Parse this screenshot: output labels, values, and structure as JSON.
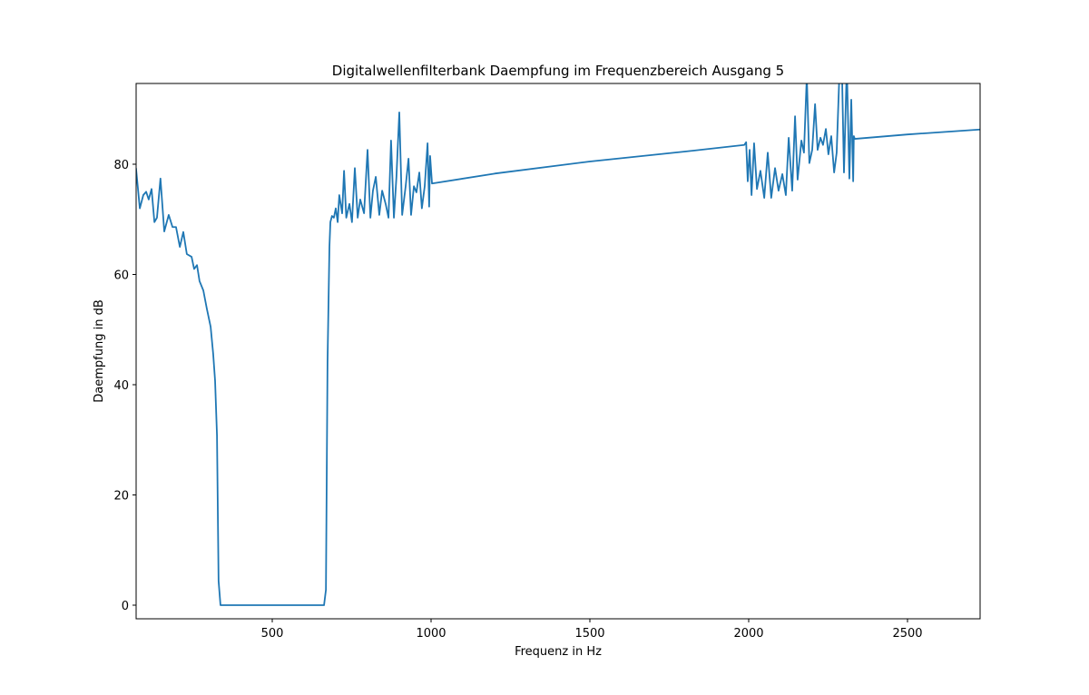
{
  "chart_data": {
    "type": "line",
    "title": "Digitalwellenfilterbank Daempfung im Frequenzbereich Ausgang 5",
    "xlabel": "Frequenz in Hz",
    "ylabel": "Daempfung in dB",
    "color": "#1f77b4",
    "x": [
      71,
      83,
      94,
      103,
      111,
      120,
      129,
      137,
      148,
      160,
      174,
      186,
      197,
      209,
      220,
      231,
      246,
      254,
      263,
      271,
      283,
      294,
      306,
      314,
      320,
      326,
      331,
      337,
      400,
      500,
      600,
      663,
      669,
      674,
      680,
      683,
      688,
      694,
      700,
      706,
      711,
      720,
      726,
      733,
      743,
      751,
      760,
      769,
      777,
      789,
      800,
      809,
      817,
      826,
      837,
      846,
      857,
      866,
      874,
      883,
      891,
      900,
      909,
      920,
      929,
      937,
      946,
      954,
      963,
      971,
      980,
      989,
      994,
      997,
      1003,
      1200,
      1500,
      1800,
      1986,
      1992,
      1997,
      2003,
      2009,
      2017,
      2026,
      2037,
      2049,
      2060,
      2071,
      2083,
      2094,
      2106,
      2117,
      2126,
      2137,
      2146,
      2154,
      2166,
      2174,
      2183,
      2191,
      2200,
      2209,
      2217,
      2226,
      2234,
      2243,
      2251,
      2260,
      2269,
      2277,
      2286,
      2294,
      2300,
      2309,
      2317,
      2323,
      2329,
      2331,
      2334,
      2500,
      2728
    ],
    "values": [
      79.3,
      72,
      74.4,
      75,
      73.6,
      75.5,
      69.5,
      70.3,
      77.4,
      67.8,
      70.8,
      68.6,
      68.6,
      65,
      67.7,
      63.7,
      63.2,
      61,
      61.7,
      58.8,
      57.1,
      53.8,
      50.5,
      45.6,
      40.7,
      30.8,
      4.4,
      0,
      0,
      0,
      0,
      0,
      2.8,
      44,
      65,
      69.5,
      70.6,
      70.3,
      72,
      69.5,
      74.4,
      71.1,
      78.8,
      70.3,
      72.8,
      69.5,
      79.3,
      70.3,
      73.6,
      71.1,
      82.6,
      70.3,
      75.2,
      77.7,
      70.8,
      75.2,
      72.8,
      70.3,
      84.3,
      70.3,
      77.7,
      89.4,
      70.8,
      76,
      81,
      70.8,
      76,
      74.9,
      78.5,
      72,
      76,
      83.8,
      72.3,
      81.5,
      76.5,
      78.3,
      80.5,
      82.3,
      83.5,
      84,
      76.9,
      82.6,
      74.4,
      83.8,
      75.5,
      78.8,
      73.9,
      82.1,
      73.9,
      79.3,
      75.2,
      78.2,
      74.4,
      84.8,
      75.2,
      88.7,
      77.2,
      84.3,
      82.1,
      96,
      80.2,
      82.6,
      90.9,
      82.6,
      84.8,
      83.5,
      86.4,
      81.8,
      85.1,
      78.5,
      82.1,
      97,
      96,
      78.5,
      98,
      77.4,
      91.7,
      76.9,
      85.1,
      84.6,
      85.4,
      86.3
    ],
    "xlim": [
      71.4,
      2728.6
    ],
    "ylim": [
      -2.47,
      94.65
    ],
    "xticks": [
      500,
      1000,
      1500,
      2000,
      2500
    ],
    "yticks": [
      0,
      20,
      40,
      60,
      80
    ],
    "grid": false
  }
}
